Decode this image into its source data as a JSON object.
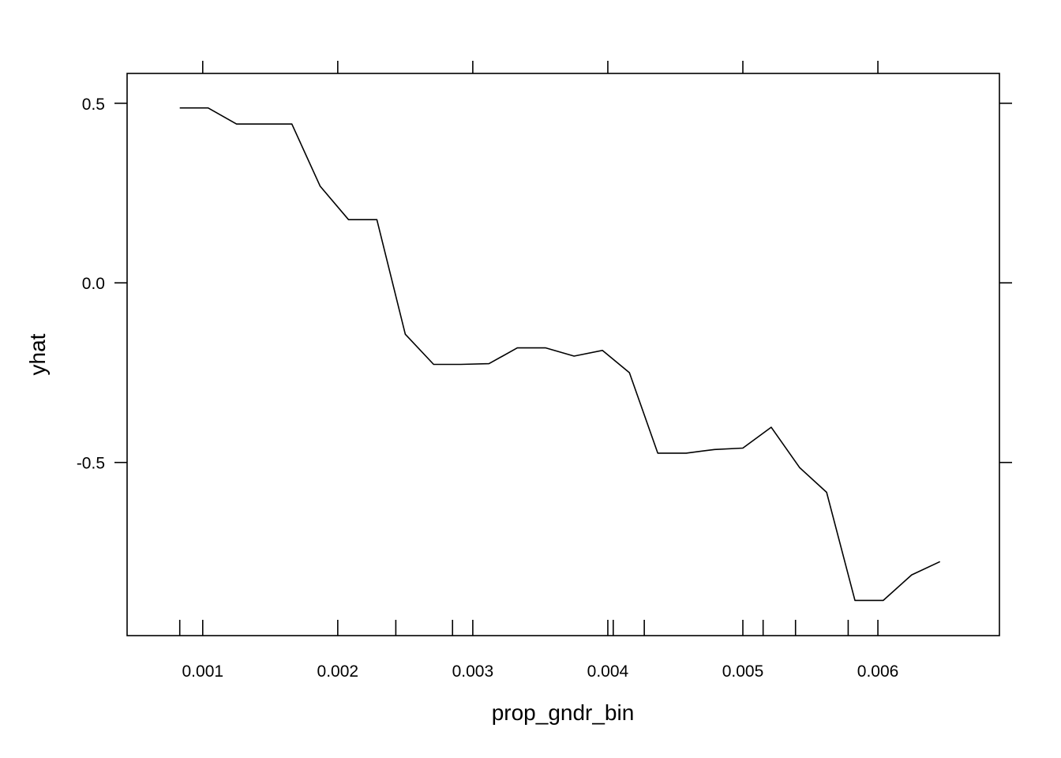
{
  "chart_data": {
    "type": "line",
    "title": "",
    "xlabel": "prop_gndr_bin",
    "ylabel": "yhat",
    "xlim": [
      0.00044,
      0.0069
    ],
    "ylim": [
      -0.982,
      0.583
    ],
    "x_ticks": [
      {
        "value": 0.001,
        "label": "0.001"
      },
      {
        "value": 0.002,
        "label": "0.002"
      },
      {
        "value": 0.003,
        "label": "0.003"
      },
      {
        "value": 0.004,
        "label": "0.004"
      },
      {
        "value": 0.005,
        "label": "0.005"
      },
      {
        "value": 0.006,
        "label": "0.006"
      }
    ],
    "y_ticks": [
      {
        "value": 0.5,
        "label": "0.5"
      },
      {
        "value": 0.0,
        "label": "0.0"
      },
      {
        "value": -0.5,
        "label": "-0.5"
      }
    ],
    "rug_x": [
      0.00083,
      0.00243,
      0.00285,
      0.00404,
      0.00427,
      0.00515,
      0.00539,
      0.00578
    ],
    "grid": false,
    "series": [
      {
        "color": "#000000",
        "x": [
          0.00083,
          0.00104,
          0.00125,
          0.00146,
          0.00166,
          0.00187,
          0.00208,
          0.00229,
          0.0025,
          0.00271,
          0.00291,
          0.00312,
          0.00333,
          0.00354,
          0.00375,
          0.00396,
          0.00416,
          0.00437,
          0.00458,
          0.00479,
          0.005,
          0.00521,
          0.00542,
          0.00562,
          0.00583,
          0.00604,
          0.00625,
          0.00646
        ],
        "y": [
          0.487,
          0.487,
          0.442,
          0.442,
          0.442,
          0.269,
          0.176,
          0.176,
          -0.143,
          -0.227,
          -0.227,
          -0.225,
          -0.181,
          -0.181,
          -0.204,
          -0.188,
          -0.25,
          -0.474,
          -0.474,
          -0.464,
          -0.46,
          -0.402,
          -0.514,
          -0.583,
          -0.884,
          -0.884,
          -0.813,
          -0.776
        ]
      }
    ]
  }
}
